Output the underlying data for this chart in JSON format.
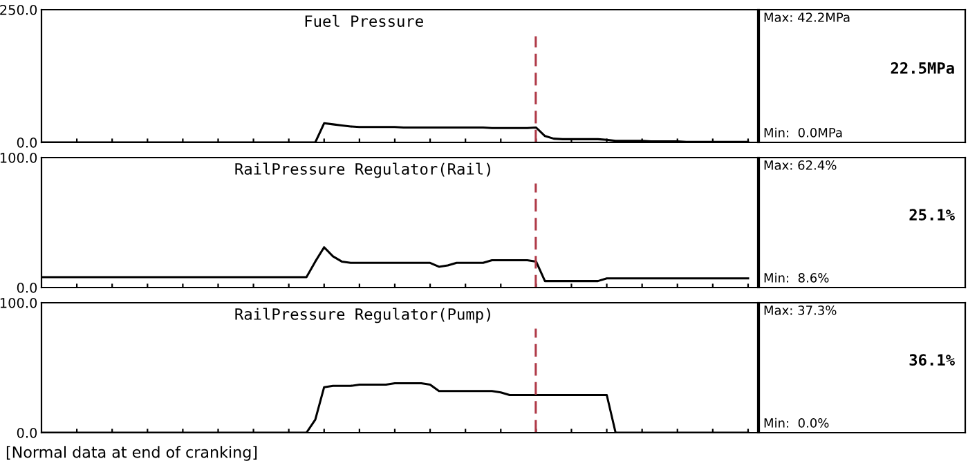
{
  "chart_data": [
    {
      "type": "line",
      "title": "Fuel Pressure",
      "tick_labels": "y",
      "grid": false,
      "legend": false,
      "marker": "none",
      "line_style": "solid",
      "categories": [
        null,
        null,
        null,
        null,
        null,
        null,
        null,
        null,
        null,
        null,
        null,
        null,
        null,
        null,
        null,
        null,
        null,
        null,
        null,
        null,
        null,
        null,
        null,
        null,
        null,
        null,
        null,
        null,
        null,
        null,
        null,
        null,
        null,
        null,
        null,
        null,
        null,
        null,
        null,
        null,
        null,
        null,
        null,
        null,
        null,
        null,
        null,
        null,
        null,
        null,
        null,
        null,
        null,
        null,
        null,
        null,
        null,
        null,
        null,
        null,
        null,
        null,
        null,
        null,
        null,
        null,
        null,
        null,
        null,
        null,
        null,
        null,
        null,
        null,
        null,
        null,
        null,
        null,
        null,
        null,
        null
      ],
      "series": [
        {
          "color": "#000000",
          "values": [
            0,
            0,
            0,
            0,
            0,
            0,
            0,
            0,
            0,
            0,
            0,
            0,
            0,
            0,
            0,
            0,
            0,
            0,
            0,
            0,
            0,
            0,
            0,
            0,
            0,
            0,
            0,
            0,
            0,
            0,
            0,
            0,
            36,
            34,
            32,
            30,
            29,
            29,
            29,
            29,
            29,
            28,
            28,
            28,
            28,
            28,
            28,
            28,
            28,
            28,
            28,
            27,
            27,
            27,
            27,
            27,
            28,
            12,
            7,
            6,
            6,
            6,
            6,
            6,
            5,
            3,
            3,
            3,
            3,
            2,
            2,
            2,
            2,
            1,
            1,
            1,
            1,
            1,
            1,
            1,
            1
          ]
        }
      ],
      "ylim": [
        0,
        250
      ],
      "yticks": [
        {
          "value": 0,
          "label": "0.0"
        },
        {
          "value": 250,
          "label": "250.0"
        }
      ],
      "annotations": [
        "Max: 42.2MPa",
        "Min:  0.0MPa",
        "22.5MPa"
      ]
    },
    {
      "type": "line",
      "title": "RailPressure Regulator(Rail)",
      "tick_labels": "y",
      "grid": false,
      "legend": false,
      "marker": "none",
      "line_style": "solid",
      "categories": [
        null,
        null,
        null,
        null,
        null,
        null,
        null,
        null,
        null,
        null,
        null,
        null,
        null,
        null,
        null,
        null,
        null,
        null,
        null,
        null,
        null,
        null,
        null,
        null,
        null,
        null,
        null,
        null,
        null,
        null,
        null,
        null,
        null,
        null,
        null,
        null,
        null,
        null,
        null,
        null,
        null,
        null,
        null,
        null,
        null,
        null,
        null,
        null,
        null,
        null,
        null,
        null,
        null,
        null,
        null,
        null,
        null,
        null,
        null,
        null,
        null,
        null,
        null,
        null,
        null,
        null,
        null,
        null,
        null,
        null,
        null,
        null,
        null,
        null,
        null,
        null,
        null,
        null,
        null,
        null,
        null
      ],
      "series": [
        {
          "color": "#000000",
          "values": [
            8,
            8,
            8,
            8,
            8,
            8,
            8,
            8,
            8,
            8,
            8,
            8,
            8,
            8,
            8,
            8,
            8,
            8,
            8,
            8,
            8,
            8,
            8,
            8,
            8,
            8,
            8,
            8,
            8,
            8,
            8,
            20,
            31,
            24,
            20,
            19,
            19,
            19,
            19,
            19,
            19,
            19,
            19,
            19,
            19,
            16,
            17,
            19,
            19,
            19,
            19,
            21,
            21,
            21,
            21,
            21,
            20,
            5,
            5,
            5,
            5,
            5,
            5,
            5,
            7,
            7,
            7,
            7,
            7,
            7,
            7,
            7,
            7,
            7,
            7,
            7,
            7,
            7,
            7,
            7,
            7
          ]
        }
      ],
      "ylim": [
        0,
        100
      ],
      "yticks": [
        {
          "value": 0,
          "label": "0.0"
        },
        {
          "value": 100,
          "label": "100.0"
        }
      ],
      "annotations": [
        "Max: 62.4%",
        "Min:  8.6%",
        "25.1%"
      ]
    },
    {
      "type": "line",
      "title": "RailPressure Regulator(Pump)",
      "tick_labels": "y",
      "grid": false,
      "legend": false,
      "marker": "none",
      "line_style": "solid",
      "categories": [
        null,
        null,
        null,
        null,
        null,
        null,
        null,
        null,
        null,
        null,
        null,
        null,
        null,
        null,
        null,
        null,
        null,
        null,
        null,
        null,
        null,
        null,
        null,
        null,
        null,
        null,
        null,
        null,
        null,
        null,
        null,
        null,
        null,
        null,
        null,
        null,
        null,
        null,
        null,
        null,
        null,
        null,
        null,
        null,
        null,
        null,
        null,
        null,
        null,
        null,
        null,
        null,
        null,
        null,
        null,
        null,
        null,
        null,
        null,
        null,
        null,
        null,
        null,
        null,
        null,
        null,
        null,
        null,
        null,
        null,
        null,
        null,
        null,
        null,
        null,
        null,
        null,
        null,
        null,
        null,
        null
      ],
      "series": [
        {
          "color": "#000000",
          "values": [
            0,
            0,
            0,
            0,
            0,
            0,
            0,
            0,
            0,
            0,
            0,
            0,
            0,
            0,
            0,
            0,
            0,
            0,
            0,
            0,
            0,
            0,
            0,
            0,
            0,
            0,
            0,
            0,
            0,
            0,
            0,
            10,
            35,
            36,
            36,
            36,
            37,
            37,
            37,
            37,
            38,
            38,
            38,
            38,
            37,
            32,
            32,
            32,
            32,
            32,
            32,
            32,
            31,
            29,
            29,
            29,
            29,
            29,
            29,
            29,
            29,
            29,
            29,
            29,
            29,
            0,
            0,
            0,
            0,
            0,
            0,
            0,
            0,
            0,
            0,
            0,
            0,
            0,
            0,
            0,
            0
          ]
        }
      ],
      "ylim": [
        0,
        100
      ],
      "yticks": [
        {
          "value": 0,
          "label": "0.0"
        },
        {
          "value": 100,
          "label": "100.0"
        }
      ],
      "annotations": [
        "Max: 37.3%",
        "Min:  0.0%",
        "36.1%",
        "[Normal data at end of cranking]"
      ]
    }
  ]
}
